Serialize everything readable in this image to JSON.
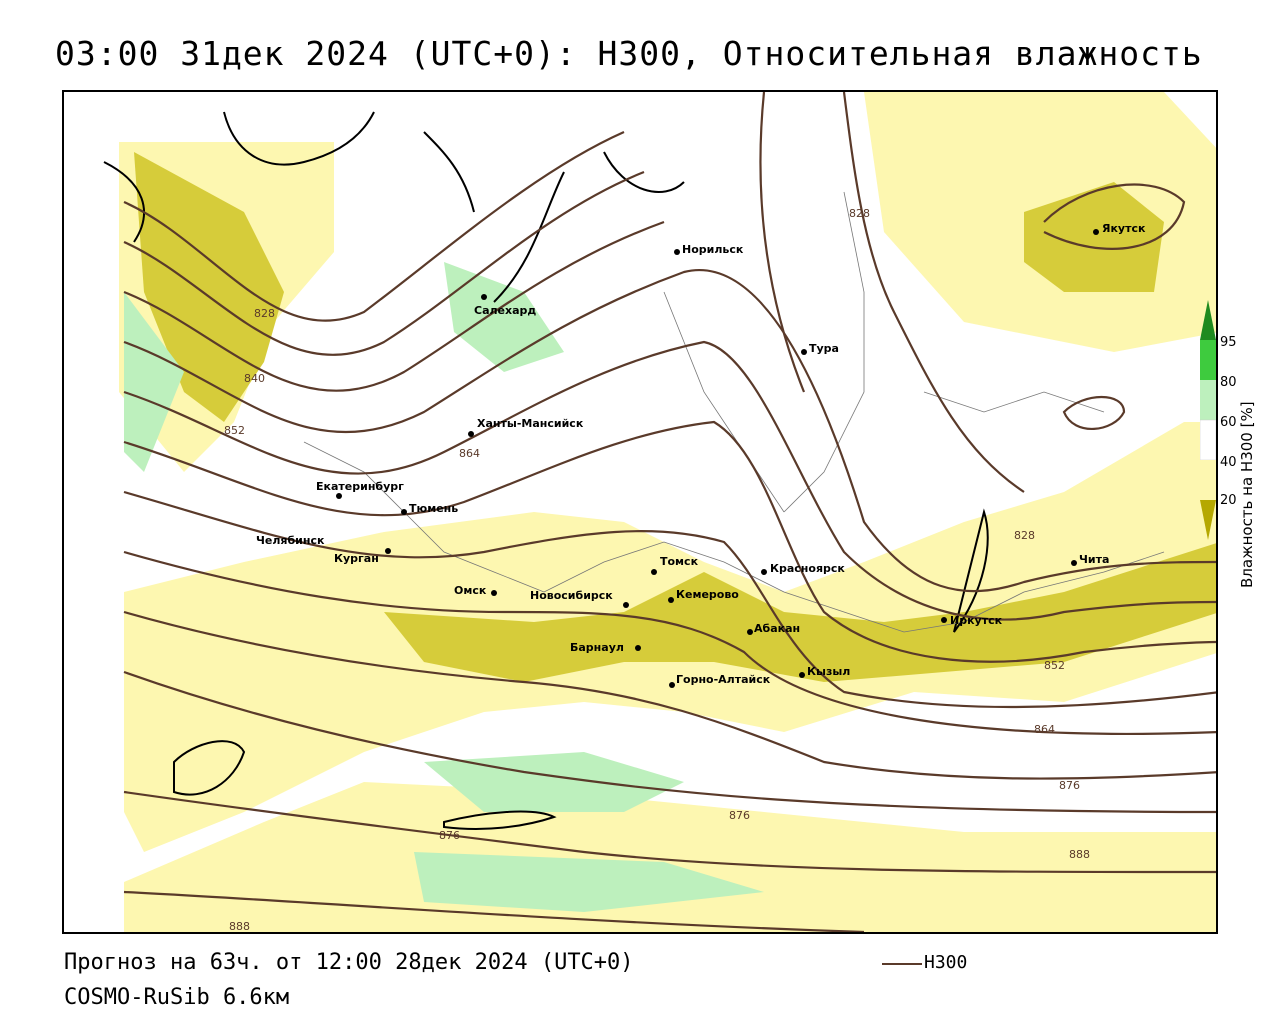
{
  "title": "03:00 31дек 2024 (UTC+0): H300, Относительная влажность",
  "footer": {
    "forecast": "Прогноз на 63ч. от 12:00 28дек 2024 (UTC+0)",
    "model": "COSMO-RuSib 6.6км",
    "legend_h300": "H300"
  },
  "colorbar": {
    "title": "Влажность на H300 [%]",
    "ticks": [
      "95",
      "80",
      "60",
      "40",
      "20"
    ],
    "colors": {
      "c95": "#1f8a1f",
      "c80": "#3ecb3e",
      "c60": "#bdf0bd",
      "c40": "#ffffff",
      "c20": "#fdf7b0",
      "low": "#b5a800"
    }
  },
  "cities": [
    {
      "name": "Норильск"
    },
    {
      "name": "Салехард"
    },
    {
      "name": "Тура"
    },
    {
      "name": "Якутск"
    },
    {
      "name": "Ханты-Мансийск"
    },
    {
      "name": "Екатеринбург"
    },
    {
      "name": "Тюмень"
    },
    {
      "name": "Челябинск"
    },
    {
      "name": "Курган"
    },
    {
      "name": "Омск"
    },
    {
      "name": "Новосибирск"
    },
    {
      "name": "Томск"
    },
    {
      "name": "Кемерово"
    },
    {
      "name": "Красноярск"
    },
    {
      "name": "Барнаул"
    },
    {
      "name": "Абакан"
    },
    {
      "name": "Горно-Алтайск"
    },
    {
      "name": "Кызыл"
    },
    {
      "name": "Иркутск"
    },
    {
      "name": "Чита"
    }
  ],
  "contour_labels": [
    "828",
    "840",
    "852",
    "864",
    "876",
    "888"
  ],
  "contour_color": "#5a3a2a"
}
